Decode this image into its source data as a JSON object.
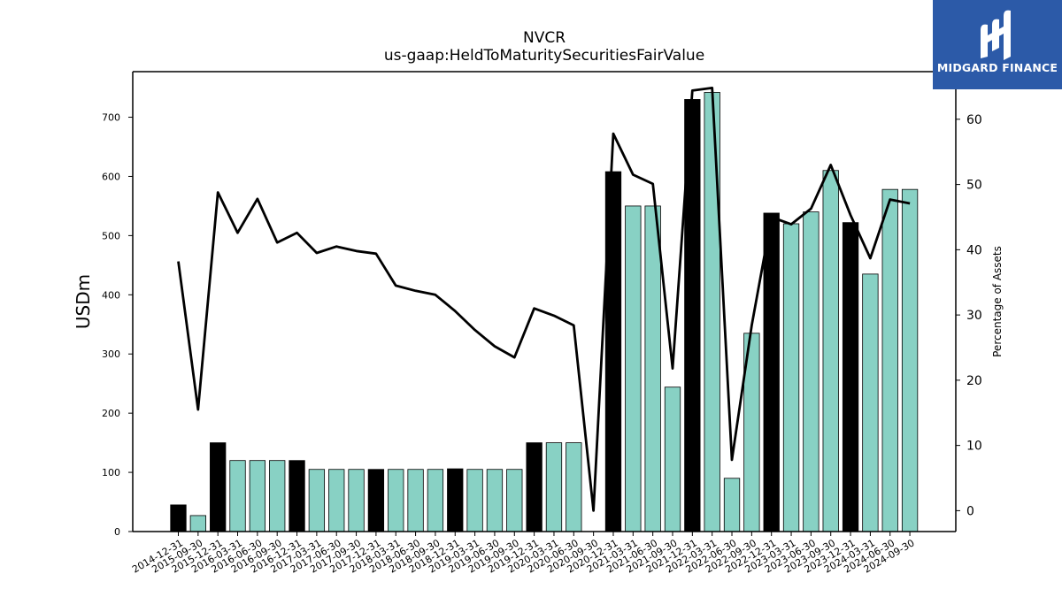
{
  "chart_data": {
    "type": "bar",
    "title": "NVCR",
    "subtitle": "us-gaap:HeldToMaturitySecuritiesFairValue",
    "ylabel": "USDm",
    "y2label": "Percentage of Assets",
    "ylim": [
      0,
      777
    ],
    "y2lim": [
      -3.2,
      67.3
    ],
    "yticks": [
      0,
      100,
      200,
      300,
      400,
      500,
      600,
      700
    ],
    "y2ticks": [
      0,
      10,
      20,
      30,
      40,
      50,
      60
    ],
    "categories": [
      "2014-12-31",
      "2015-09-30",
      "2015-12-31",
      "2016-03-31",
      "2016-06-30",
      "2016-09-30",
      "2016-12-31",
      "2017-03-31",
      "2017-06-30",
      "2017-09-30",
      "2017-12-31",
      "2018-03-31",
      "2018-06-30",
      "2018-09-30",
      "2018-12-31",
      "2019-03-31",
      "2019-06-30",
      "2019-09-30",
      "2019-12-31",
      "2020-03-31",
      "2020-06-30",
      "2020-09-30",
      "2020-12-31",
      "2021-03-31",
      "2021-06-30",
      "2021-09-30",
      "2021-12-31",
      "2022-03-31",
      "2022-06-30",
      "2022-09-30",
      "2022-12-31",
      "2023-03-31",
      "2023-06-30",
      "2023-09-30",
      "2023-12-31",
      "2024-03-31",
      "2024-06-30",
      "2024-09-30"
    ],
    "series": [
      {
        "type": "bar",
        "values": [
          45,
          27,
          150,
          120,
          120,
          120,
          120,
          105,
          105,
          105,
          105,
          105,
          105,
          105,
          106,
          105,
          105,
          105,
          150,
          150,
          150,
          0,
          608,
          550,
          550,
          244,
          730,
          742,
          90,
          335,
          538,
          520,
          540,
          610,
          522,
          435,
          578,
          578
        ],
        "highlight": [
          true,
          false,
          true,
          false,
          false,
          false,
          true,
          false,
          false,
          false,
          true,
          false,
          false,
          false,
          true,
          false,
          false,
          false,
          true,
          false,
          false,
          false,
          true,
          false,
          false,
          false,
          true,
          false,
          false,
          false,
          true,
          false,
          false,
          false,
          true,
          false,
          false,
          false
        ]
      },
      {
        "type": "line",
        "axis": "right",
        "values": [
          38.2,
          15.5,
          48.8,
          42.6,
          47.8,
          41.1,
          42.6,
          39.5,
          40.5,
          39.8,
          39.4,
          34.5,
          33.7,
          33.1,
          30.6,
          27.7,
          25.2,
          23.5,
          31.0,
          29.9,
          28.4,
          0.0,
          57.8,
          51.5,
          50.1,
          21.8,
          64.4,
          64.8,
          7.8,
          28.4,
          45.0,
          43.9,
          46.3,
          53.0,
          45.3,
          38.7,
          47.7,
          47.1
        ]
      }
    ],
    "colors": {
      "bar": "#88d1c4",
      "highlight": "#000000",
      "line": "#000000",
      "edge": "#000000"
    },
    "grid": false,
    "legend": "none"
  },
  "watermark": {
    "brand": "MIDGARD FINANCE",
    "bg": "#2c5aa8"
  }
}
